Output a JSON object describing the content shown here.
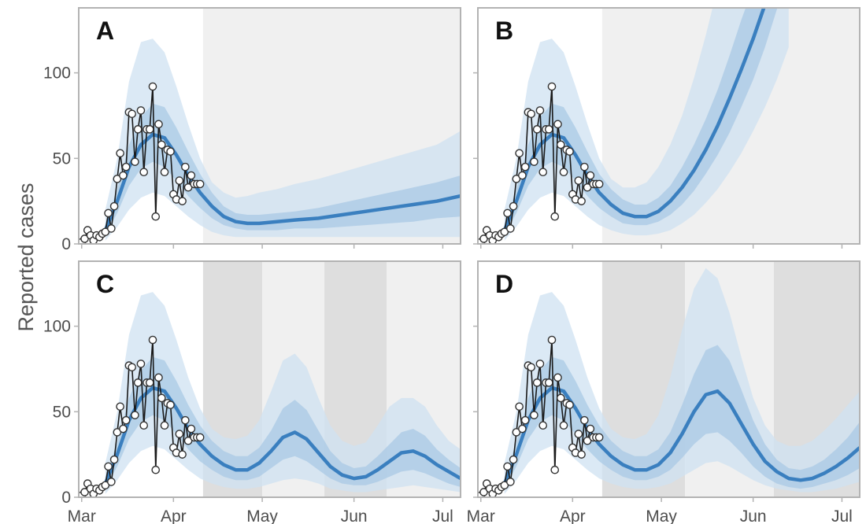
{
  "colors": {
    "band_outer": "#cfe1f2",
    "band_inner": "#a7c7e4",
    "median_line": "#3a7fbf",
    "shade_light": "#f0f0f0",
    "shade_dark": "#dedede",
    "observed_line": "#1a1a1a",
    "observed_marker_fill": "#ffffff",
    "frame": "#b3b3b3"
  },
  "y_axis_label": "Reported cases",
  "chart_data": [
    {
      "type": "line",
      "panel": "A",
      "xlabel": "",
      "ylabel": "Reported cases",
      "x_ticks": [
        "Mar",
        "Apr",
        "May",
        "Jun",
        "Jul"
      ],
      "x_tick_days": [
        0,
        31,
        61,
        92,
        122
      ],
      "x_range_days": [
        -1,
        128
      ],
      "y_ticks": [
        0,
        50,
        100
      ],
      "ylim": [
        0,
        138
      ],
      "grid": false,
      "shaded_periods": [
        {
          "start_day": 41,
          "end_day": 128,
          "shade": "light"
        }
      ],
      "forecast": {
        "x_days": [
          8,
          12,
          16,
          20,
          24,
          28,
          32,
          36,
          40,
          44,
          48,
          52,
          56,
          60,
          66,
          72,
          80,
          88,
          96,
          104,
          112,
          120,
          128
        ],
        "median": [
          8,
          25,
          45,
          58,
          64,
          62,
          52,
          40,
          30,
          22,
          16,
          13,
          12,
          12,
          13,
          14,
          15,
          17,
          19,
          21,
          23,
          25,
          28
        ],
        "inner_lower": [
          5,
          18,
          34,
          44,
          48,
          45,
          37,
          28,
          21,
          15,
          11,
          9,
          8,
          8,
          8,
          9,
          9,
          10,
          11,
          12,
          13,
          15,
          16
        ],
        "inner_upper": [
          12,
          32,
          58,
          74,
          82,
          80,
          68,
          54,
          41,
          30,
          22,
          18,
          17,
          17,
          18,
          19,
          21,
          24,
          27,
          30,
          33,
          36,
          40
        ],
        "outer_lower": [
          2,
          10,
          20,
          27,
          30,
          28,
          22,
          16,
          11,
          7,
          5,
          4,
          4,
          4,
          4,
          4,
          4,
          4,
          4,
          4,
          4,
          4,
          4
        ],
        "outer_upper": [
          20,
          50,
          95,
          118,
          120,
          112,
          92,
          70,
          50,
          36,
          30,
          27,
          28,
          30,
          32,
          35,
          38,
          42,
          46,
          50,
          54,
          58,
          66
        ]
      },
      "observed": {
        "x_days": [
          0,
          1,
          2,
          3,
          4,
          5,
          6,
          7,
          8,
          9,
          10,
          11,
          12,
          13,
          14,
          15,
          16,
          17,
          18,
          19,
          20,
          21,
          22,
          23,
          24,
          25,
          26,
          27,
          28,
          29,
          30,
          31,
          32,
          33,
          34,
          35,
          36,
          37,
          38,
          39,
          40
        ],
        "y": [
          1,
          3,
          8,
          5,
          2,
          5,
          4,
          6,
          7,
          18,
          9,
          22,
          38,
          53,
          40,
          45,
          77,
          76,
          48,
          67,
          78,
          42,
          67,
          67,
          92,
          16,
          70,
          58,
          42,
          55,
          54,
          29,
          26,
          37,
          25,
          45,
          33,
          40,
          35,
          35,
          35
        ]
      }
    },
    {
      "type": "line",
      "panel": "B",
      "xlabel": "",
      "ylabel": "",
      "x_ticks": [
        "Mar",
        "Apr",
        "May",
        "Jun",
        "Jul"
      ],
      "x_tick_days": [
        0,
        31,
        61,
        92,
        122
      ],
      "x_range_days": [
        -1,
        128
      ],
      "y_ticks": [
        0,
        50,
        100
      ],
      "ylim": [
        0,
        138
      ],
      "grid": false,
      "shaded_periods": [
        {
          "start_day": 41,
          "end_day": 128,
          "shade": "light"
        }
      ],
      "forecast": {
        "x_days": [
          8,
          12,
          16,
          20,
          24,
          28,
          32,
          36,
          40,
          44,
          48,
          52,
          56,
          60,
          64,
          68,
          72,
          76,
          80,
          84,
          88,
          92,
          96,
          100,
          104
        ],
        "median": [
          8,
          25,
          45,
          58,
          64,
          62,
          52,
          40,
          30,
          23,
          18,
          16,
          16,
          19,
          25,
          33,
          43,
          55,
          69,
          85,
          102,
          120,
          140,
          165,
          190
        ],
        "inner_lower": [
          5,
          18,
          34,
          44,
          48,
          45,
          37,
          28,
          21,
          16,
          12,
          11,
          11,
          13,
          17,
          23,
          31,
          41,
          52,
          65,
          80,
          96,
          115,
          137,
          160
        ],
        "inner_upper": [
          12,
          32,
          58,
          74,
          82,
          80,
          68,
          54,
          41,
          32,
          26,
          23,
          23,
          27,
          34,
          45,
          58,
          73,
          90,
          110,
          131,
          150,
          170,
          195,
          220
        ],
        "outer_lower": [
          2,
          10,
          20,
          27,
          30,
          28,
          22,
          16,
          11,
          8,
          6,
          5,
          5,
          6,
          8,
          12,
          17,
          24,
          32,
          42,
          53,
          66,
          80,
          96,
          115
        ],
        "outer_upper": [
          20,
          50,
          95,
          118,
          120,
          112,
          92,
          70,
          50,
          38,
          33,
          33,
          36,
          45,
          58,
          75,
          97,
          122,
          150,
          180,
          210,
          240,
          270,
          300,
          330
        ]
      },
      "observed": {
        "x_days": [
          0,
          1,
          2,
          3,
          4,
          5,
          6,
          7,
          8,
          9,
          10,
          11,
          12,
          13,
          14,
          15,
          16,
          17,
          18,
          19,
          20,
          21,
          22,
          23,
          24,
          25,
          26,
          27,
          28,
          29,
          30,
          31,
          32,
          33,
          34,
          35,
          36,
          37,
          38,
          39,
          40
        ],
        "y": [
          1,
          3,
          8,
          5,
          2,
          5,
          4,
          6,
          7,
          18,
          9,
          22,
          38,
          53,
          40,
          45,
          77,
          76,
          48,
          67,
          78,
          42,
          67,
          67,
          92,
          16,
          70,
          58,
          42,
          55,
          54,
          29,
          26,
          37,
          25,
          45,
          33,
          40,
          35,
          35,
          35
        ]
      }
    },
    {
      "type": "line",
      "panel": "C",
      "xlabel": "",
      "ylabel": "Reported cases",
      "x_ticks": [
        "Mar",
        "Apr",
        "May",
        "Jun",
        "Jul"
      ],
      "x_tick_days": [
        0,
        31,
        61,
        92,
        122
      ],
      "x_range_days": [
        -1,
        128
      ],
      "y_ticks": [
        0,
        50,
        100
      ],
      "ylim": [
        0,
        138
      ],
      "grid": false,
      "shaded_periods": [
        {
          "start_day": 41,
          "end_day": 61,
          "shade": "dark"
        },
        {
          "start_day": 61,
          "end_day": 82,
          "shade": "light"
        },
        {
          "start_day": 82,
          "end_day": 103,
          "shade": "dark"
        },
        {
          "start_day": 103,
          "end_day": 128,
          "shade": "light"
        }
      ],
      "forecast": {
        "x_days": [
          8,
          12,
          16,
          20,
          24,
          28,
          32,
          36,
          40,
          44,
          48,
          52,
          56,
          60,
          64,
          68,
          72,
          76,
          80,
          84,
          88,
          92,
          96,
          100,
          104,
          108,
          112,
          116,
          120,
          124,
          128
        ],
        "median": [
          8,
          25,
          45,
          58,
          64,
          62,
          52,
          40,
          31,
          24,
          19,
          16,
          16,
          20,
          27,
          35,
          38,
          34,
          26,
          18,
          13,
          11,
          12,
          16,
          21,
          26,
          27,
          24,
          19,
          15,
          11
        ],
        "inner_lower": [
          5,
          18,
          34,
          44,
          48,
          45,
          37,
          28,
          21,
          16,
          12,
          10,
          10,
          12,
          17,
          22,
          24,
          21,
          16,
          11,
          8,
          7,
          7,
          9,
          12,
          15,
          16,
          14,
          11,
          8,
          6
        ],
        "inner_upper": [
          12,
          32,
          58,
          74,
          82,
          80,
          68,
          54,
          42,
          33,
          27,
          24,
          24,
          29,
          39,
          52,
          57,
          51,
          39,
          27,
          20,
          17,
          18,
          24,
          31,
          38,
          40,
          36,
          28,
          22,
          17
        ],
        "outer_lower": [
          2,
          10,
          20,
          27,
          30,
          28,
          22,
          16,
          11,
          8,
          6,
          5,
          5,
          6,
          8,
          10,
          11,
          10,
          8,
          5,
          4,
          3,
          3,
          4,
          5,
          6,
          7,
          6,
          5,
          4,
          3
        ],
        "outer_upper": [
          20,
          50,
          95,
          118,
          120,
          112,
          92,
          70,
          52,
          40,
          35,
          34,
          36,
          45,
          62,
          80,
          84,
          76,
          58,
          42,
          33,
          30,
          32,
          42,
          53,
          58,
          58,
          53,
          42,
          33,
          28
        ]
      },
      "observed": {
        "x_days": [
          0,
          1,
          2,
          3,
          4,
          5,
          6,
          7,
          8,
          9,
          10,
          11,
          12,
          13,
          14,
          15,
          16,
          17,
          18,
          19,
          20,
          21,
          22,
          23,
          24,
          25,
          26,
          27,
          28,
          29,
          30,
          31,
          32,
          33,
          34,
          35,
          36,
          37,
          38,
          39,
          40
        ],
        "y": [
          1,
          3,
          8,
          5,
          2,
          5,
          4,
          6,
          7,
          18,
          9,
          22,
          38,
          53,
          40,
          45,
          77,
          76,
          48,
          67,
          78,
          42,
          67,
          67,
          92,
          16,
          70,
          58,
          42,
          55,
          54,
          29,
          26,
          37,
          25,
          45,
          33,
          40,
          35,
          35,
          35
        ]
      }
    },
    {
      "type": "line",
      "panel": "D",
      "xlabel": "",
      "ylabel": "",
      "x_ticks": [
        "Mar",
        "Apr",
        "May",
        "Jun",
        "Jul"
      ],
      "x_tick_days": [
        0,
        31,
        61,
        92,
        122
      ],
      "x_range_days": [
        -1,
        128
      ],
      "y_ticks": [
        0,
        50,
        100
      ],
      "ylim": [
        0,
        138
      ],
      "grid": false,
      "shaded_periods": [
        {
          "start_day": 41,
          "end_day": 69,
          "shade": "dark"
        },
        {
          "start_day": 69,
          "end_day": 99,
          "shade": "light"
        },
        {
          "start_day": 99,
          "end_day": 128,
          "shade": "dark"
        }
      ],
      "forecast": {
        "x_days": [
          8,
          12,
          16,
          20,
          24,
          28,
          32,
          36,
          40,
          44,
          48,
          52,
          56,
          60,
          64,
          68,
          72,
          76,
          80,
          84,
          88,
          92,
          96,
          100,
          104,
          108,
          112,
          116,
          120,
          124,
          128
        ],
        "median": [
          8,
          25,
          45,
          58,
          64,
          62,
          52,
          40,
          31,
          24,
          19,
          16,
          16,
          19,
          26,
          37,
          50,
          60,
          62,
          55,
          43,
          31,
          21,
          15,
          11,
          10,
          11,
          14,
          18,
          23,
          29
        ],
        "inner_lower": [
          5,
          18,
          34,
          44,
          48,
          45,
          37,
          28,
          21,
          16,
          12,
          10,
          10,
          12,
          16,
          23,
          31,
          37,
          38,
          33,
          26,
          18,
          12,
          8,
          6,
          5,
          6,
          8,
          10,
          13,
          17
        ],
        "inner_upper": [
          12,
          32,
          58,
          74,
          82,
          80,
          68,
          54,
          42,
          33,
          27,
          24,
          24,
          28,
          38,
          54,
          72,
          86,
          89,
          80,
          63,
          45,
          31,
          22,
          17,
          16,
          18,
          22,
          28,
          35,
          44
        ],
        "outer_lower": [
          2,
          10,
          20,
          27,
          30,
          28,
          22,
          16,
          11,
          8,
          6,
          5,
          5,
          6,
          8,
          12,
          16,
          20,
          21,
          18,
          14,
          10,
          7,
          5,
          4,
          3,
          3,
          4,
          5,
          7,
          9
        ],
        "outer_upper": [
          20,
          50,
          95,
          118,
          120,
          112,
          92,
          70,
          52,
          40,
          35,
          34,
          37,
          48,
          70,
          98,
          122,
          134,
          128,
          108,
          82,
          58,
          42,
          33,
          30,
          30,
          33,
          39,
          46,
          54,
          62
        ]
      },
      "observed": {
        "x_days": [
          0,
          1,
          2,
          3,
          4,
          5,
          6,
          7,
          8,
          9,
          10,
          11,
          12,
          13,
          14,
          15,
          16,
          17,
          18,
          19,
          20,
          21,
          22,
          23,
          24,
          25,
          26,
          27,
          28,
          29,
          30,
          31,
          32,
          33,
          34,
          35,
          36,
          37,
          38,
          39,
          40
        ],
        "y": [
          1,
          3,
          8,
          5,
          2,
          5,
          4,
          6,
          7,
          18,
          9,
          22,
          38,
          53,
          40,
          45,
          77,
          76,
          48,
          67,
          78,
          42,
          67,
          67,
          92,
          16,
          70,
          58,
          42,
          55,
          54,
          29,
          26,
          37,
          25,
          45,
          33,
          40,
          35,
          35,
          35
        ]
      }
    }
  ]
}
